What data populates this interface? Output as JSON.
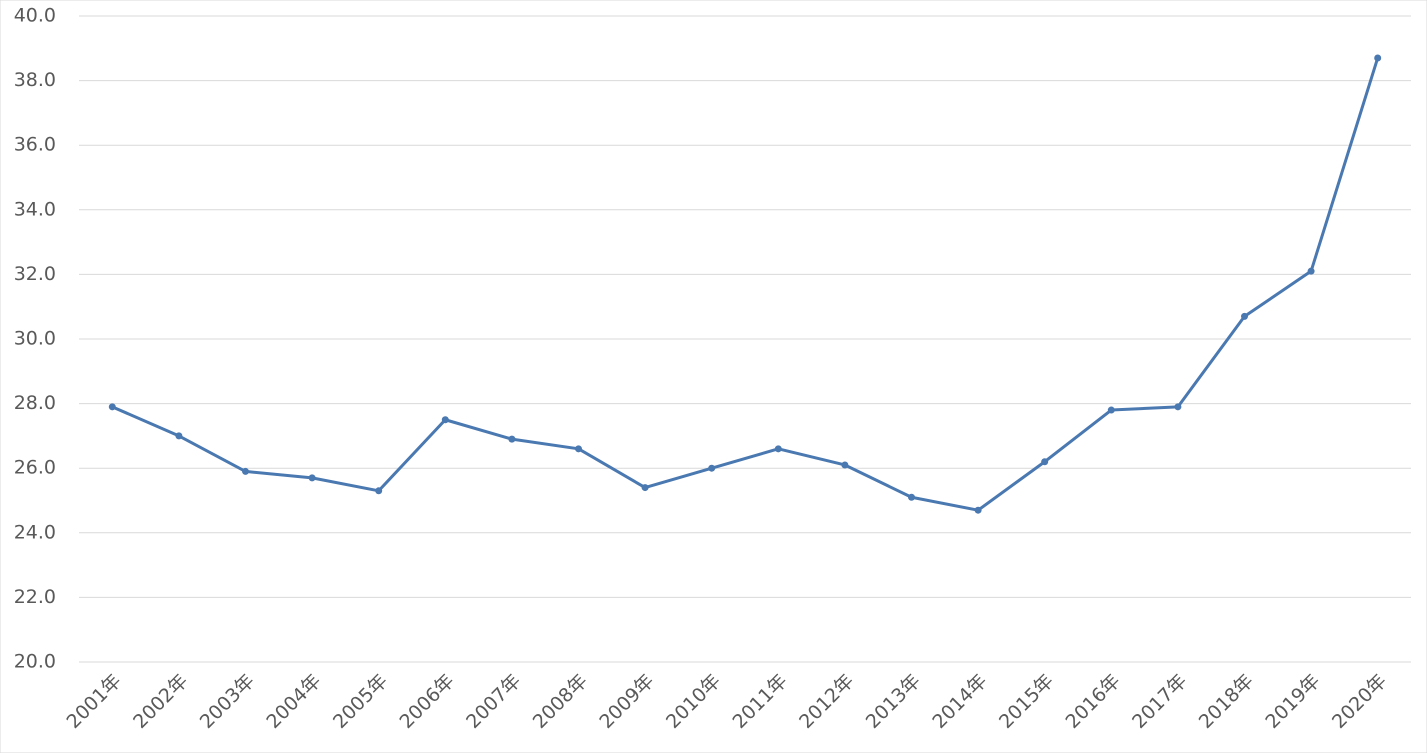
{
  "chart_data": {
    "type": "line",
    "categories": [
      "2001年",
      "2002年",
      "2003年",
      "2004年",
      "2005年",
      "2006年",
      "2007年",
      "2008年",
      "2009年",
      "2010年",
      "2011年",
      "2012年",
      "2013年",
      "2014年",
      "2015年",
      "2016年",
      "2017年",
      "2018年",
      "2019年",
      "2020年"
    ],
    "series": [
      {
        "color": "#4a78b0",
        "values": [
          27.9,
          27.0,
          25.9,
          25.7,
          25.3,
          27.5,
          26.9,
          26.6,
          25.4,
          26.0,
          26.6,
          26.1,
          25.1,
          24.7,
          26.2,
          27.8,
          27.9,
          30.7,
          32.1,
          38.7
        ]
      }
    ],
    "ylim": [
      20,
      40
    ],
    "yticks": [
      {
        "value": 20,
        "label": "20.0"
      },
      {
        "value": 22,
        "label": "22.0"
      },
      {
        "value": 24,
        "label": "24.0"
      },
      {
        "value": 26,
        "label": "26.0"
      },
      {
        "value": 28,
        "label": "28.0"
      },
      {
        "value": 30,
        "label": "30.0"
      },
      {
        "value": 32,
        "label": "32.0"
      },
      {
        "value": 34,
        "label": "34.0"
      },
      {
        "value": 36,
        "label": "36.0"
      },
      {
        "value": 38,
        "label": "38.0"
      },
      {
        "value": 40,
        "label": "40.0"
      }
    ],
    "grid": true
  }
}
